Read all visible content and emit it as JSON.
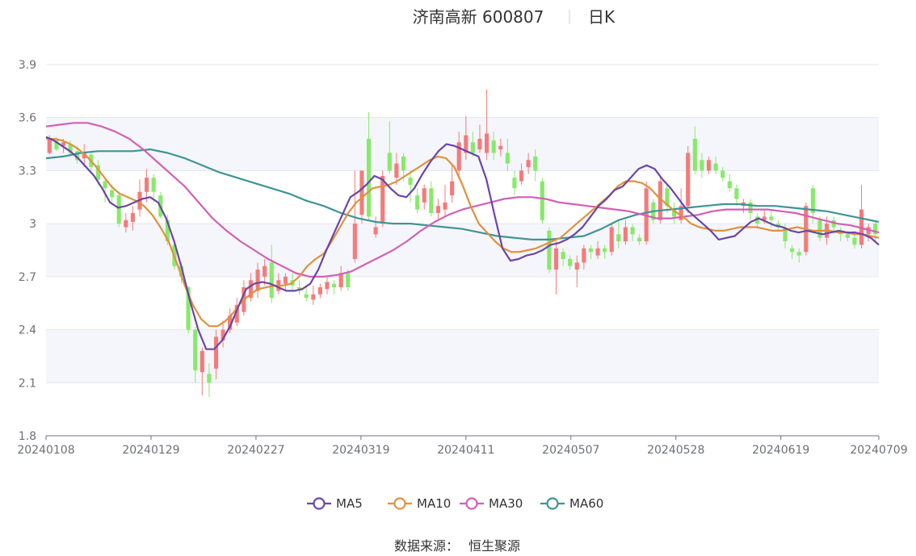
{
  "chart_data": {
    "type": "candlestick",
    "title": "济南高新 600807",
    "subtitle": "日K",
    "source_label": "数据来源：",
    "source_name": "恒生聚源",
    "ylim": [
      1.8,
      3.9
    ],
    "yticks": [
      "1.8",
      "2.1",
      "2.4",
      "2.7",
      "3",
      "3.3",
      "3.6",
      "3.9"
    ],
    "xticks": [
      {
        "label": "20240108",
        "index": 0
      },
      {
        "label": "20240129",
        "index": 15
      },
      {
        "label": "20240227",
        "index": 30
      },
      {
        "label": "20240319",
        "index": 45
      },
      {
        "label": "20240411",
        "index": 60
      },
      {
        "label": "20240507",
        "index": 75
      },
      {
        "label": "20240528",
        "index": 90
      },
      {
        "label": "20240619",
        "index": 105
      },
      {
        "label": "20240709",
        "index": 119
      }
    ],
    "grid": true,
    "legend_position": "bottom",
    "colors": {
      "up": "#f47b7b",
      "down": "#88e96a",
      "MA5": "#6b45a8",
      "MA10": "#e0913d",
      "MA30": "#d35fb7",
      "MA60": "#3f9496",
      "axis": "#6e7079",
      "grid": "#e0e6f1",
      "band": "#f5f6fb"
    },
    "candles": [
      [
        3.4,
        3.48,
        3.39,
        3.5
      ],
      [
        3.47,
        3.42,
        3.41,
        3.49
      ],
      [
        3.44,
        3.46,
        3.4,
        3.48
      ],
      [
        3.45,
        3.4,
        3.38,
        3.47
      ],
      [
        3.41,
        3.36,
        3.34,
        3.44
      ],
      [
        3.37,
        3.4,
        3.32,
        3.45
      ],
      [
        3.39,
        3.32,
        3.3,
        3.41
      ],
      [
        3.33,
        3.25,
        3.22,
        3.36
      ],
      [
        3.24,
        3.2,
        3.12,
        3.26
      ],
      [
        3.19,
        3.15,
        3.12,
        3.22
      ],
      [
        3.16,
        3.0,
        2.98,
        3.18
      ],
      [
        2.98,
        3.02,
        2.95,
        3.06
      ],
      [
        3.01,
        3.06,
        2.96,
        3.1
      ],
      [
        3.08,
        3.18,
        3.04,
        3.25
      ],
      [
        3.18,
        3.26,
        3.12,
        3.31
      ],
      [
        3.26,
        3.18,
        3.12,
        3.28
      ],
      [
        3.16,
        3.04,
        3.03,
        3.18
      ],
      [
        3.02,
        2.9,
        2.88,
        3.05
      ],
      [
        2.88,
        2.76,
        2.74,
        2.9
      ],
      [
        2.76,
        2.7,
        2.66,
        2.78
      ],
      [
        2.64,
        2.4,
        2.38,
        2.65
      ],
      [
        2.4,
        2.17,
        2.1,
        2.42
      ],
      [
        2.16,
        2.28,
        2.03,
        2.3
      ],
      [
        2.15,
        2.1,
        2.02,
        2.21
      ],
      [
        2.18,
        2.36,
        2.12,
        2.4
      ],
      [
        2.34,
        2.4,
        2.3,
        2.45
      ],
      [
        2.4,
        2.48,
        2.38,
        2.52
      ],
      [
        2.44,
        2.54,
        2.42,
        2.58
      ],
      [
        2.5,
        2.64,
        2.48,
        2.68
      ],
      [
        2.58,
        2.68,
        2.56,
        2.72
      ],
      [
        2.62,
        2.74,
        2.58,
        2.78
      ],
      [
        2.7,
        2.76,
        2.65,
        2.8
      ],
      [
        2.78,
        2.58,
        2.55,
        2.88
      ],
      [
        2.62,
        2.68,
        2.6,
        2.72
      ],
      [
        2.66,
        2.7,
        2.62,
        2.72
      ],
      [
        2.68,
        2.65,
        2.62,
        2.72
      ],
      [
        2.64,
        2.62,
        2.6,
        2.68
      ],
      [
        2.6,
        2.58,
        2.56,
        2.64
      ],
      [
        2.57,
        2.6,
        2.54,
        2.65
      ],
      [
        2.6,
        2.64,
        2.58,
        2.66
      ],
      [
        2.63,
        2.67,
        2.6,
        2.7
      ],
      [
        2.66,
        2.64,
        2.6,
        2.68
      ],
      [
        2.64,
        2.72,
        2.62,
        2.76
      ],
      [
        2.72,
        2.64,
        2.62,
        2.74
      ],
      [
        2.8,
        3.0,
        2.78,
        3.3
      ],
      [
        3.05,
        3.3,
        3.0,
        3.3
      ],
      [
        3.48,
        3.04,
        3.02,
        3.63
      ],
      [
        2.94,
        2.98,
        2.92,
        3.04
      ],
      [
        3.0,
        3.27,
        2.98,
        3.3
      ],
      [
        3.4,
        3.3,
        3.28,
        3.58
      ],
      [
        3.26,
        3.34,
        3.22,
        3.4
      ],
      [
        3.38,
        3.3,
        3.24,
        3.4
      ],
      [
        3.26,
        3.22,
        3.12,
        3.3
      ],
      [
        3.16,
        3.08,
        3.06,
        3.2
      ],
      [
        3.12,
        3.2,
        3.08,
        3.22
      ],
      [
        3.2,
        3.06,
        3.04,
        3.24
      ],
      [
        3.06,
        3.1,
        3.02,
        3.14
      ],
      [
        3.08,
        3.12,
        3.04,
        3.22
      ],
      [
        3.16,
        3.24,
        3.12,
        3.34
      ],
      [
        3.3,
        3.46,
        3.26,
        3.52
      ],
      [
        3.4,
        3.5,
        3.36,
        3.61
      ],
      [
        3.46,
        3.4,
        3.38,
        3.52
      ],
      [
        3.42,
        3.48,
        3.4,
        3.56
      ],
      [
        3.4,
        3.51,
        3.36,
        3.76
      ],
      [
        3.47,
        3.4,
        3.36,
        3.52
      ],
      [
        3.42,
        3.44,
        3.38,
        3.48
      ],
      [
        3.4,
        3.34,
        3.3,
        3.48
      ],
      [
        3.26,
        3.2,
        3.16,
        3.3
      ],
      [
        3.24,
        3.3,
        3.22,
        3.34
      ],
      [
        3.32,
        3.36,
        3.28,
        3.4
      ],
      [
        3.38,
        3.3,
        3.24,
        3.42
      ],
      [
        3.24,
        3.02,
        3.0,
        3.26
      ],
      [
        2.96,
        2.74,
        2.72,
        2.98
      ],
      [
        2.74,
        2.86,
        2.6,
        2.9
      ],
      [
        2.84,
        2.8,
        2.76,
        2.86
      ],
      [
        2.8,
        2.76,
        2.74,
        2.82
      ],
      [
        2.74,
        2.78,
        2.64,
        2.82
      ],
      [
        2.78,
        2.86,
        2.74,
        2.88
      ],
      [
        2.86,
        2.84,
        2.8,
        2.88
      ],
      [
        2.82,
        2.86,
        2.8,
        2.9
      ],
      [
        2.86,
        2.84,
        2.8,
        2.88
      ],
      [
        2.84,
        2.98,
        2.82,
        3.0
      ],
      [
        2.94,
        2.9,
        2.86,
        3.02
      ],
      [
        2.9,
        2.98,
        2.88,
        3.02
      ],
      [
        2.98,
        2.94,
        2.9,
        3.0
      ],
      [
        2.92,
        2.9,
        2.88,
        2.94
      ],
      [
        2.9,
        3.2,
        2.88,
        3.24
      ],
      [
        3.12,
        3.02,
        3.0,
        3.14
      ],
      [
        3.02,
        3.24,
        3.0,
        3.27
      ],
      [
        3.2,
        3.1,
        3.06,
        3.22
      ],
      [
        3.08,
        3.04,
        3.0,
        3.12
      ],
      [
        3.02,
        3.1,
        3.0,
        3.2
      ],
      [
        3.1,
        3.4,
        3.06,
        3.44
      ],
      [
        3.48,
        3.3,
        3.28,
        3.55
      ],
      [
        3.36,
        3.3,
        3.26,
        3.4
      ],
      [
        3.3,
        3.36,
        3.28,
        3.38
      ],
      [
        3.34,
        3.3,
        3.28,
        3.38
      ],
      [
        3.3,
        3.26,
        3.24,
        3.32
      ],
      [
        3.24,
        3.2,
        3.18,
        3.28
      ],
      [
        3.2,
        3.14,
        3.1,
        3.22
      ],
      [
        3.1,
        3.12,
        3.06,
        3.14
      ],
      [
        3.12,
        3.06,
        3.02,
        3.14
      ],
      [
        3.04,
        3.0,
        2.98,
        3.06
      ],
      [
        3.02,
        3.04,
        3.0,
        3.08
      ],
      [
        3.04,
        3.02,
        2.98,
        3.08
      ],
      [
        3.0,
        2.98,
        2.96,
        3.02
      ],
      [
        2.98,
        2.9,
        2.86,
        3.0
      ],
      [
        2.86,
        2.84,
        2.8,
        2.88
      ],
      [
        2.84,
        2.82,
        2.78,
        2.86
      ],
      [
        2.84,
        3.1,
        2.82,
        3.12
      ],
      [
        3.2,
        3.06,
        3.0,
        3.22
      ],
      [
        3.02,
        2.92,
        2.9,
        3.04
      ],
      [
        2.92,
        3.0,
        2.88,
        3.04
      ],
      [
        3.02,
        2.98,
        2.94,
        3.04
      ],
      [
        2.96,
        2.94,
        2.9,
        2.98
      ],
      [
        2.94,
        2.92,
        2.9,
        2.96
      ],
      [
        2.92,
        2.88,
        2.86,
        2.96
      ],
      [
        2.88,
        3.08,
        2.86,
        3.22
      ],
      [
        2.94,
        2.98,
        2.9,
        3.0
      ],
      [
        3.0,
        2.94,
        2.9,
        3.02
      ]
    ],
    "ma": {
      "MA5": [
        3.49,
        3.47,
        3.44,
        3.41,
        3.37,
        3.32,
        3.27,
        3.2,
        3.12,
        3.09,
        3.1,
        3.12,
        3.14,
        3.15,
        3.12,
        3.03,
        2.9,
        2.74,
        2.56,
        2.4,
        2.29,
        2.29,
        2.34,
        2.42,
        2.53,
        2.63,
        2.66,
        2.67,
        2.66,
        2.64,
        2.62,
        2.62,
        2.63,
        2.66,
        2.74,
        2.85,
        2.95,
        3.05,
        3.15,
        3.18,
        3.22,
        3.27,
        3.25,
        3.2,
        3.16,
        3.15,
        3.2,
        3.28,
        3.35,
        3.41,
        3.45,
        3.44,
        3.42,
        3.4,
        3.38,
        3.25,
        3.05,
        2.86,
        2.79,
        2.8,
        2.82,
        2.83,
        2.85,
        2.88,
        2.89,
        2.91,
        2.94,
        2.98,
        3.04,
        3.1,
        3.14,
        3.19,
        3.21,
        3.26,
        3.31,
        3.33,
        3.31,
        3.25,
        3.2,
        3.14,
        3.08,
        3.04,
        3.0,
        2.96,
        2.91,
        2.92,
        2.93,
        2.97,
        3.01,
        3.03,
        3.01,
        2.99,
        2.98,
        2.96,
        2.95,
        2.96,
        2.95,
        2.94,
        2.95,
        2.96,
        2.95,
        2.95,
        2.94,
        2.92,
        2.88
      ],
      "MA10": [
        3.48,
        3.48,
        3.47,
        3.45,
        3.42,
        3.38,
        3.33,
        3.27,
        3.21,
        3.17,
        3.15,
        3.13,
        3.1,
        3.05,
        2.98,
        2.9,
        2.78,
        2.65,
        2.54,
        2.46,
        2.42,
        2.42,
        2.45,
        2.5,
        2.56,
        2.6,
        2.63,
        2.64,
        2.65,
        2.65,
        2.66,
        2.7,
        2.76,
        2.8,
        2.83,
        2.9,
        2.98,
        3.06,
        3.12,
        3.16,
        3.2,
        3.21,
        3.22,
        3.24,
        3.27,
        3.3,
        3.33,
        3.36,
        3.38,
        3.37,
        3.32,
        3.22,
        3.1,
        3.0,
        2.95,
        2.9,
        2.86,
        2.84,
        2.84,
        2.85,
        2.86,
        2.88,
        2.9,
        2.92,
        2.96,
        3.0,
        3.04,
        3.08,
        3.12,
        3.16,
        3.21,
        3.24,
        3.24,
        3.23,
        3.2,
        3.15,
        3.11,
        3.07,
        3.04,
        3.0,
        2.98,
        2.97,
        2.96,
        2.96,
        2.97,
        2.98,
        2.98,
        2.98,
        2.97,
        2.96,
        2.96,
        2.97,
        2.98,
        2.97,
        2.96,
        2.96,
        2.96,
        2.95,
        2.95,
        2.94,
        2.94,
        2.93,
        2.92
      ],
      "MA30": [
        3.55,
        3.56,
        3.57,
        3.57,
        3.55,
        3.52,
        3.48,
        3.42,
        3.35,
        3.28,
        3.21,
        3.12,
        3.03,
        2.96,
        2.9,
        2.85,
        2.8,
        2.76,
        2.72,
        2.7,
        2.7,
        2.71,
        2.73,
        2.77,
        2.81,
        2.85,
        2.9,
        2.96,
        3.01,
        3.05,
        3.08,
        3.1,
        3.12,
        3.14,
        3.15,
        3.15,
        3.14,
        3.12,
        3.11,
        3.1,
        3.09,
        3.08,
        3.07,
        3.05,
        3.03,
        3.03,
        3.04,
        3.05,
        3.07,
        3.08,
        3.08,
        3.08,
        3.08,
        3.07,
        3.06,
        3.04,
        3.02,
        3.0,
        2.99,
        2.97,
        2.95
      ],
      "MA60": [
        3.37,
        3.38,
        3.4,
        3.41,
        3.41,
        3.41,
        3.42,
        3.4,
        3.37,
        3.33,
        3.29,
        3.26,
        3.23,
        3.2,
        3.17,
        3.13,
        3.1,
        3.06,
        3.03,
        3.01,
        3.0,
        3.0,
        2.99,
        2.98,
        2.97,
        2.95,
        2.93,
        2.92,
        2.91,
        2.91,
        2.92,
        2.93,
        2.97,
        3.02,
        3.05,
        3.07,
        3.08,
        3.09,
        3.1,
        3.11,
        3.11,
        3.1,
        3.1,
        3.09,
        3.08,
        3.07,
        3.05,
        3.03,
        3.01
      ]
    },
    "series": [
      {
        "name": "MA5"
      },
      {
        "name": "MA10"
      },
      {
        "name": "MA30"
      },
      {
        "name": "MA60"
      }
    ]
  }
}
